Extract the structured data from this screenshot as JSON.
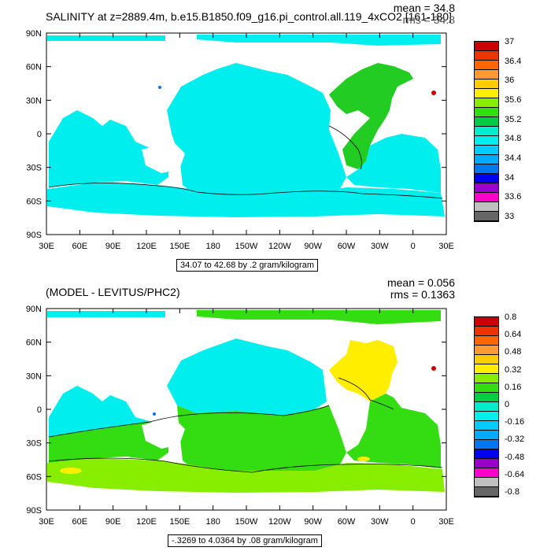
{
  "colors": {
    "land": "#ffffff",
    "ocean_top": "#00eeee",
    "ocean_top_2": "#00dddd",
    "atlantic_top": "#22cc22",
    "pacific_bottom": "#00dddd",
    "south_bottom": "#33dd11",
    "yellow": "#ffee00",
    "palette": [
      "#666666",
      "#c0c0c0",
      "#ff00cc",
      "#9900cc",
      "#0000ee",
      "#0077ee",
      "#00aaff",
      "#00ccff",
      "#00eeee",
      "#00eecc",
      "#00cc44",
      "#33dd11",
      "#88ee00",
      "#ffee00",
      "#ffcc00",
      "#ff9933",
      "#ff6600",
      "#ee3300",
      "#cc0000"
    ]
  },
  "chart_data": [
    {
      "type": "heatmap",
      "title": "SALINITY at z=2889.4m, b.e15.B1850.f09_g16.pi_control.all.119_4xCO2 [161-180]",
      "stats": {
        "mean": "mean = 34.8",
        "rms": "rms = 34.8"
      },
      "x_ticks": [
        "30E",
        "60E",
        "90E",
        "120E",
        "150E",
        "180",
        "150W",
        "120W",
        "90W",
        "60W",
        "30W",
        "0",
        "30E"
      ],
      "y_ticks": [
        "90N",
        "60N",
        "30N",
        "0",
        "30S",
        "60S",
        "90S"
      ],
      "contour_info": "34.07 to 42.68 by .2 gram/kilogram",
      "colorbar_labels": [
        "37",
        "36.4",
        "36",
        "35.6",
        "35.2",
        "34.8",
        "34.4",
        "34",
        "33.6",
        "33"
      ],
      "colorbar_min": 33,
      "colorbar_max": 37
    },
    {
      "type": "heatmap",
      "title": "(MODEL - LEVITUS/PHC2)",
      "stats": {
        "mean": "mean = 0.056",
        "rms": "rms = 0.1363"
      },
      "x_ticks": [
        "30E",
        "60E",
        "90E",
        "120E",
        "150E",
        "180",
        "150W",
        "120W",
        "90W",
        "60W",
        "30W",
        "0",
        "30E"
      ],
      "y_ticks": [
        "90N",
        "60N",
        "30N",
        "0",
        "30S",
        "60S",
        "90S"
      ],
      "contour_info": "-.3269 to 4.0364 by .08 gram/kilogram",
      "colorbar_labels": [
        "0.8",
        "0.64",
        "0.48",
        "0.32",
        "0.16",
        "0",
        "-0.16",
        "-0.32",
        "-0.48",
        "-0.64",
        "-0.8"
      ],
      "colorbar_min": -0.8,
      "colorbar_max": 0.8
    }
  ]
}
